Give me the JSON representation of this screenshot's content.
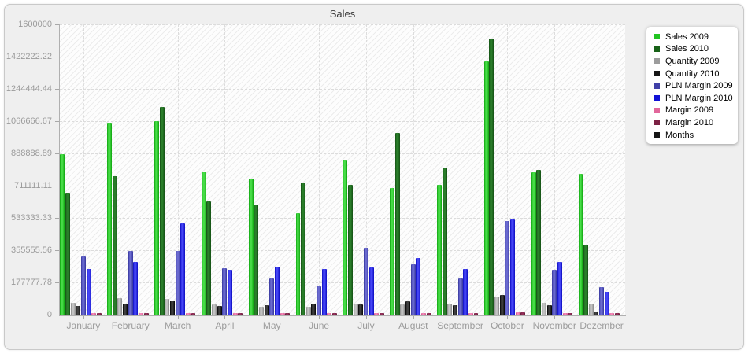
{
  "chart_data": {
    "type": "bar",
    "title": "Sales",
    "categories": [
      "January",
      "February",
      "March",
      "April",
      "May",
      "June",
      "July",
      "August",
      "September",
      "October",
      "November",
      "Dezember"
    ],
    "y_ticks": [
      "1600000",
      "1422222.22",
      "1244444.44",
      "1066666.67",
      "888888.89",
      "711111.11",
      "533333.33",
      "355555.56",
      "177777.78",
      "0"
    ],
    "ylim": [
      0,
      1600000
    ],
    "xlabel": "",
    "ylabel": "",
    "grid": "dashed",
    "legend_position": "right",
    "series": [
      {
        "name": "Sales 2009",
        "color": "#22c422",
        "edge": "#0da30d",
        "mid": "#47dd47",
        "values": [
          883000,
          1057000,
          1065000,
          787000,
          752000,
          561000,
          848000,
          700000,
          717000,
          1396000,
          783000,
          778000
        ]
      },
      {
        "name": "Sales 2010",
        "color": "#186218",
        "edge": "#134f13",
        "mid": "#2a7e2a",
        "values": [
          674000,
          765000,
          1143000,
          626000,
          609000,
          730000,
          717000,
          1004000,
          813000,
          1522000,
          800000,
          387000
        ]
      },
      {
        "name": "Quantity 2009",
        "color": "#9c9c9c",
        "edge": "#888888",
        "mid": "#c4c4c4",
        "values": [
          65000,
          91000,
          87000,
          57000,
          43000,
          43000,
          61000,
          57000,
          61000,
          100000,
          65000,
          61000
        ]
      },
      {
        "name": "Quantity 2010",
        "color": "#161616",
        "edge": "#000000",
        "mid": "#404040",
        "values": [
          48000,
          61000,
          78000,
          48000,
          52000,
          61000,
          57000,
          74000,
          52000,
          110000,
          52000,
          17000
        ]
      },
      {
        "name": "PLN Margin 2009",
        "color": "#4040a8",
        "edge": "#32329a",
        "mid": "#6b6bd0",
        "values": [
          322000,
          352000,
          352000,
          257000,
          200000,
          157000,
          370000,
          278000,
          200000,
          517000,
          248000,
          152000
        ]
      },
      {
        "name": "PLN Margin 2010",
        "color": "#1212d6",
        "edge": "#0a0ac0",
        "mid": "#4545f5",
        "values": [
          253000,
          291000,
          505000,
          248000,
          265000,
          252000,
          261000,
          313000,
          252000,
          526000,
          291000,
          126000
        ]
      },
      {
        "name": "Margin 2009",
        "color": "#e2679b",
        "edge": "#cf5089",
        "mid": "#f48ab8",
        "values": [
          10000,
          10000,
          10000,
          10000,
          10000,
          10000,
          10000,
          10000,
          10000,
          12000,
          10000,
          10000
        ]
      },
      {
        "name": "Margin 2010",
        "color": "#7c2144",
        "edge": "#641836",
        "mid": "#93305a",
        "values": [
          10000,
          10000,
          10000,
          10000,
          10000,
          10000,
          10000,
          10000,
          10000,
          12000,
          10000,
          10000
        ]
      },
      {
        "name": "Months",
        "color": "#161616",
        "edge": "#000000",
        "mid": "#333333",
        "values": [
          0,
          0,
          0,
          0,
          0,
          0,
          0,
          0,
          0,
          0,
          0,
          0
        ]
      }
    ]
  }
}
